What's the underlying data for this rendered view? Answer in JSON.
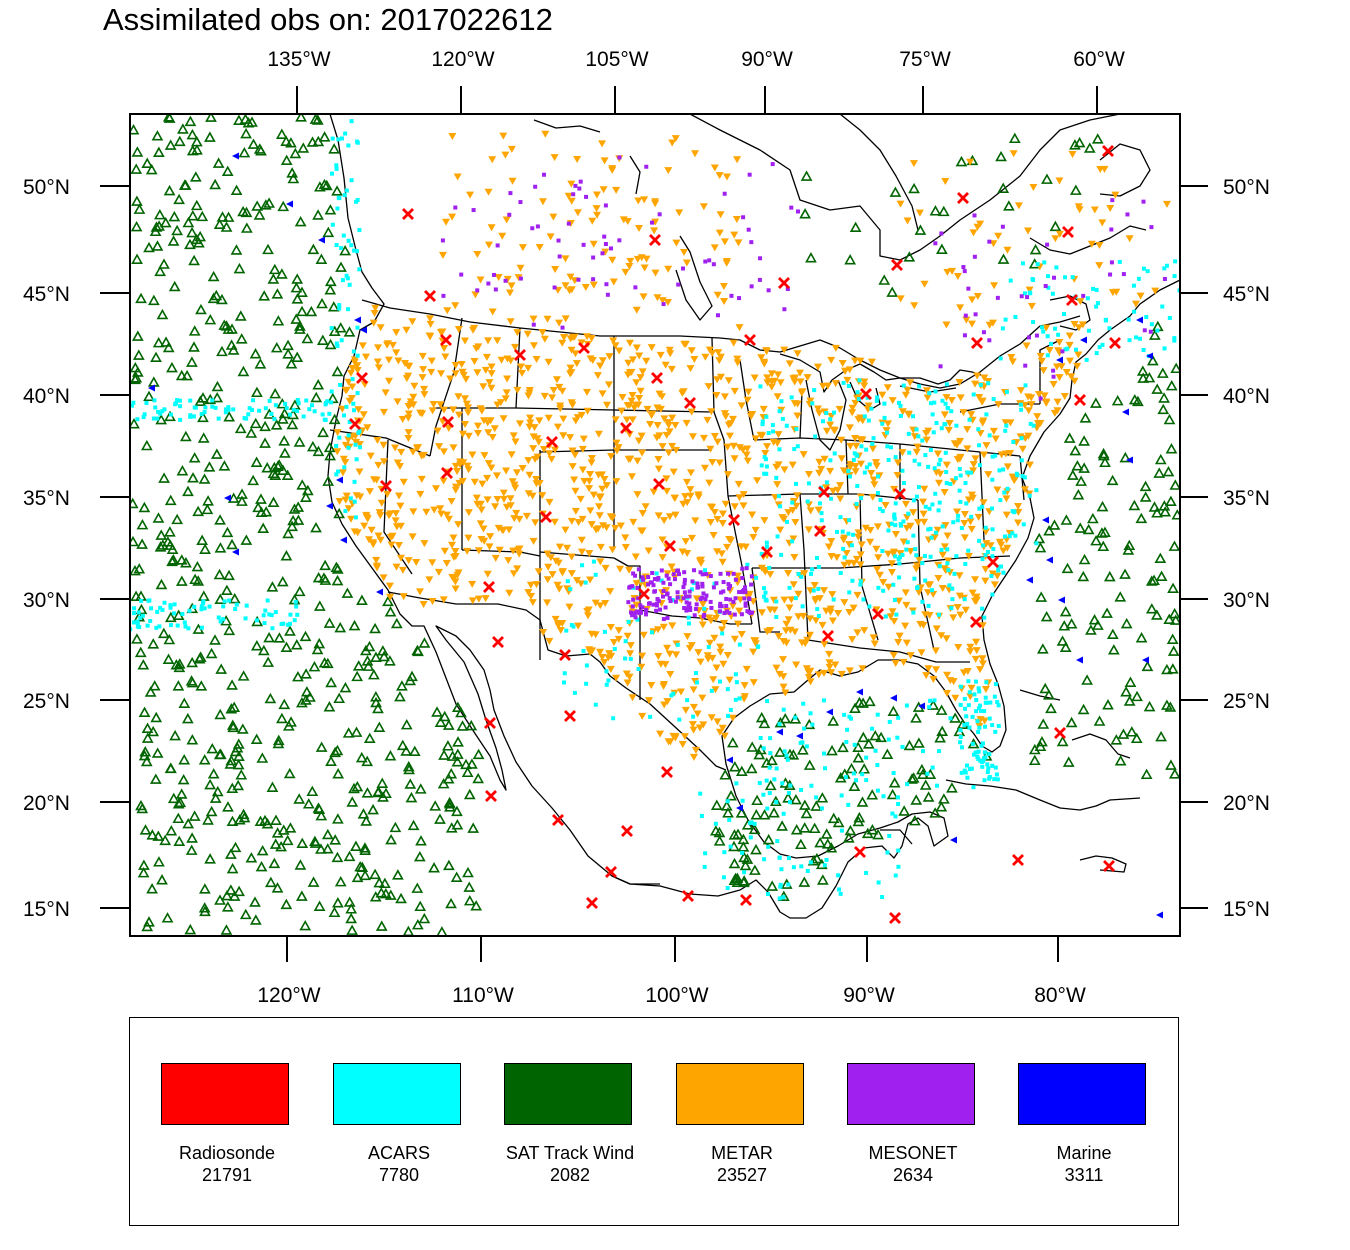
{
  "title": "Assimilated obs on: 2017022612",
  "top_axis": {
    "labels": [
      "135°W",
      "120°W",
      "105°W",
      "90°W",
      "75°W",
      "60°W"
    ]
  },
  "bottom_axis": {
    "labels": [
      "120°W",
      "110°W",
      "100°W",
      "90°W",
      "80°W"
    ]
  },
  "lat_axis": {
    "labels": [
      "50°N",
      "45°N",
      "40°N",
      "35°N",
      "30°N",
      "25°N",
      "20°N",
      "15°N"
    ]
  },
  "legend": [
    {
      "label": "Radiosonde",
      "count": "21791",
      "color": "#ff0000",
      "name": "radiosonde"
    },
    {
      "label": "ACARS",
      "count": "7780",
      "color": "#00ffff",
      "name": "acars"
    },
    {
      "label": "SAT Track Wind",
      "count": "2082",
      "color": "#006400",
      "name": "sat-track-wind"
    },
    {
      "label": "METAR",
      "count": "23527",
      "color": "#ffa500",
      "name": "metar"
    },
    {
      "label": "MESONET",
      "count": "2634",
      "color": "#a020f0",
      "name": "mesonet"
    },
    {
      "label": "Marine",
      "count": "3311",
      "color": "#0000ff",
      "name": "marine"
    }
  ],
  "basemap": {
    "type": "conic conformal map of North America",
    "features": [
      "coastlines",
      "US state boundaries",
      "national borders"
    ]
  }
}
